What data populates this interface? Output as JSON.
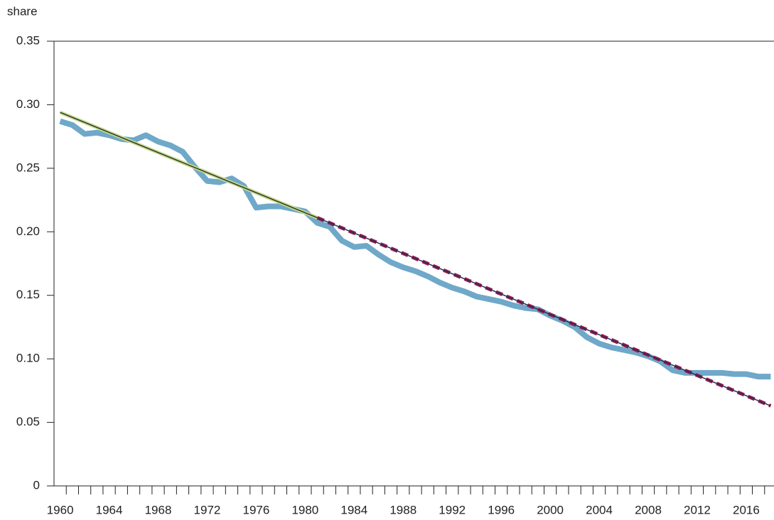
{
  "chart_data": {
    "type": "line",
    "ylabel": "share",
    "x": [
      1960,
      1961,
      1962,
      1963,
      1964,
      1965,
      1966,
      1967,
      1968,
      1969,
      1970,
      1971,
      1972,
      1973,
      1974,
      1975,
      1976,
      1977,
      1978,
      1979,
      1980,
      1981,
      1982,
      1983,
      1984,
      1985,
      1986,
      1987,
      1988,
      1989,
      1990,
      1991,
      1992,
      1993,
      1994,
      1995,
      1996,
      1997,
      1998,
      1999,
      2000,
      2001,
      2002,
      2003,
      2004,
      2005,
      2006,
      2007,
      2008,
      2009,
      2010,
      2011,
      2012,
      2013,
      2014,
      2015,
      2016,
      2017,
      2018
    ],
    "series": [
      {
        "color": "#6fa8c9",
        "values": [
          0.287,
          0.284,
          0.277,
          0.278,
          0.276,
          0.273,
          0.272,
          0.276,
          0.271,
          0.268,
          0.263,
          0.251,
          0.24,
          0.239,
          0.242,
          0.236,
          0.219,
          0.22,
          0.22,
          0.218,
          0.216,
          0.207,
          0.204,
          0.193,
          0.188,
          0.189,
          0.182,
          0.176,
          0.172,
          0.169,
          0.165,
          0.16,
          0.156,
          0.153,
          0.149,
          0.147,
          0.145,
          0.142,
          0.14,
          0.139,
          0.134,
          0.13,
          0.125,
          0.117,
          0.112,
          0.109,
          0.107,
          0.105,
          0.102,
          0.098,
          0.091,
          0.089,
          0.089,
          0.089,
          0.089,
          0.088,
          0.088,
          0.086,
          0.086
        ]
      }
    ],
    "fits": [
      {
        "color": "#c8d98a",
        "line_color": "#2b3a2e",
        "dashed": false,
        "x": [
          1960,
          1981
        ],
        "values": [
          0.294,
          0.211
        ]
      },
      {
        "color": "#9b1b4a",
        "line_color": "#1f2f5a",
        "dashed": true,
        "x": [
          1981,
          2018
        ],
        "values": [
          0.211,
          0.063
        ]
      }
    ],
    "xlim": [
      1959.5,
      2018.5
    ],
    "xticks": [
      1960,
      1964,
      1968,
      1972,
      1976,
      1980,
      1984,
      1988,
      1992,
      1996,
      2000,
      2004,
      2008,
      2012,
      2016
    ],
    "ylim": [
      0,
      0.35
    ],
    "yticks": [
      0,
      0.05,
      {
        "value": 0.1,
        "label": "0.10"
      },
      0.15,
      {
        "value": 0.2,
        "label": "0.20"
      },
      0.25,
      {
        "value": 0.3,
        "label": "0.30"
      },
      0.35
    ],
    "grid": false
  }
}
